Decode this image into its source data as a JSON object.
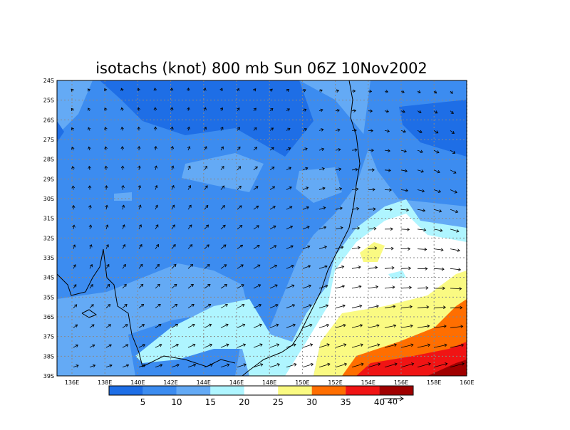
{
  "title": "isotachs (knot) 800 mb Sun 06Z 10Nov2002",
  "lon_labels": [
    "136E",
    "138E",
    "140E",
    "142E",
    "144E",
    "146E",
    "148E",
    "150E",
    "152E",
    "154E",
    "156E",
    "158E",
    "160E"
  ],
  "lat_labels": [
    "24S",
    "25S",
    "26S",
    "27S",
    "28S",
    "29S",
    "30S",
    "31S",
    "32S",
    "33S",
    "34S",
    "35S",
    "36S",
    "37S",
    "38S",
    "39S"
  ],
  "colorbar": {
    "levels": [
      5,
      10,
      15,
      20,
      25,
      30,
      35,
      40
    ],
    "colors": [
      "#1e6ee6",
      "#3c8cf0",
      "#64aaf5",
      "#aff5ff",
      "#ffffff",
      "#fafa82",
      "#ff6e00",
      "#f01414",
      "#a00000"
    ]
  },
  "vector_reference": 40
}
